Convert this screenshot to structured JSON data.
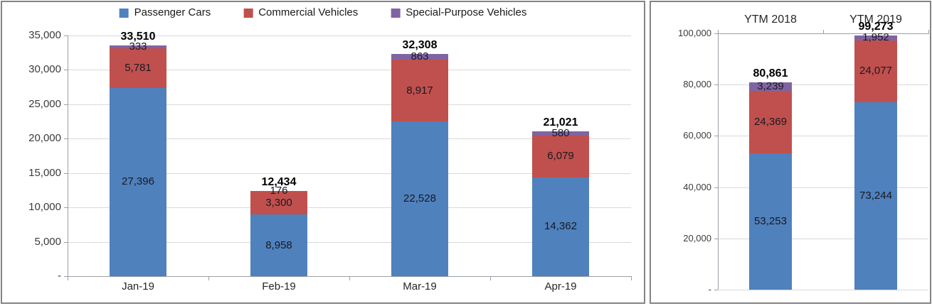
{
  "colors": {
    "passenger_cars": "#4f81bd",
    "commercial_vehicles": "#c0504d",
    "special_purpose": "#8064a2",
    "gridline": "#d9d9d9",
    "axis": "#9aa0a6",
    "panel_border": "#848484"
  },
  "chart_data": [
    {
      "type": "bar",
      "stacked": true,
      "title": "",
      "legend_position": "top",
      "category_label_position": "bottom",
      "categories": [
        "Jan-19",
        "Feb-19",
        "Mar-19",
        "Apr-19"
      ],
      "series": [
        {
          "name": "Passenger Cars",
          "color": "#4f81bd",
          "values": [
            27396,
            8958,
            22528,
            14362
          ],
          "value_labels": [
            "27,396",
            "8,958",
            "22,528",
            "14,362"
          ]
        },
        {
          "name": "Commercial Vehicles",
          "color": "#c0504d",
          "values": [
            5781,
            3300,
            8917,
            6079
          ],
          "value_labels": [
            "5,781",
            "3,300",
            "8,917",
            "6,079"
          ]
        },
        {
          "name": "Special-Purpose Vehicles",
          "color": "#8064a2",
          "values": [
            333,
            176,
            863,
            580
          ],
          "value_labels": [
            "333",
            "176",
            "863",
            "580"
          ]
        }
      ],
      "totals": [
        33510,
        12434,
        32308,
        21021
      ],
      "total_labels": [
        "33,510",
        "12,434",
        "32,308",
        "21,021"
      ],
      "ylim": [
        0,
        35000
      ],
      "ytick_step": 5000,
      "ytick_labels": [
        "-",
        "5,000",
        "10,000",
        "15,000",
        "20,000",
        "25,000",
        "30,000",
        "35,000"
      ],
      "grid": true
    },
    {
      "type": "bar",
      "stacked": true,
      "title": "",
      "legend_position": "none",
      "category_label_position": "top",
      "categories": [
        "YTM 2018",
        "YTM 2019"
      ],
      "series": [
        {
          "name": "Passenger Cars",
          "color": "#4f81bd",
          "values": [
            53253,
            73244
          ],
          "value_labels": [
            "53,253",
            "73,244"
          ]
        },
        {
          "name": "Commercial Vehicles",
          "color": "#c0504d",
          "values": [
            24369,
            24077
          ],
          "value_labels": [
            "24,369",
            "24,077"
          ]
        },
        {
          "name": "Special-Purpose Vehicles",
          "color": "#8064a2",
          "values": [
            3239,
            1952
          ],
          "value_labels": [
            "3,239",
            "1,952"
          ]
        }
      ],
      "totals": [
        80861,
        99273
      ],
      "total_labels": [
        "80,861",
        "99,273"
      ],
      "ylim": [
        0,
        100000
      ],
      "ytick_step": 20000,
      "ytick_labels": [
        "-",
        "20,000",
        "40,000",
        "60,000",
        "80,000",
        "100,000"
      ],
      "grid": true
    }
  ]
}
